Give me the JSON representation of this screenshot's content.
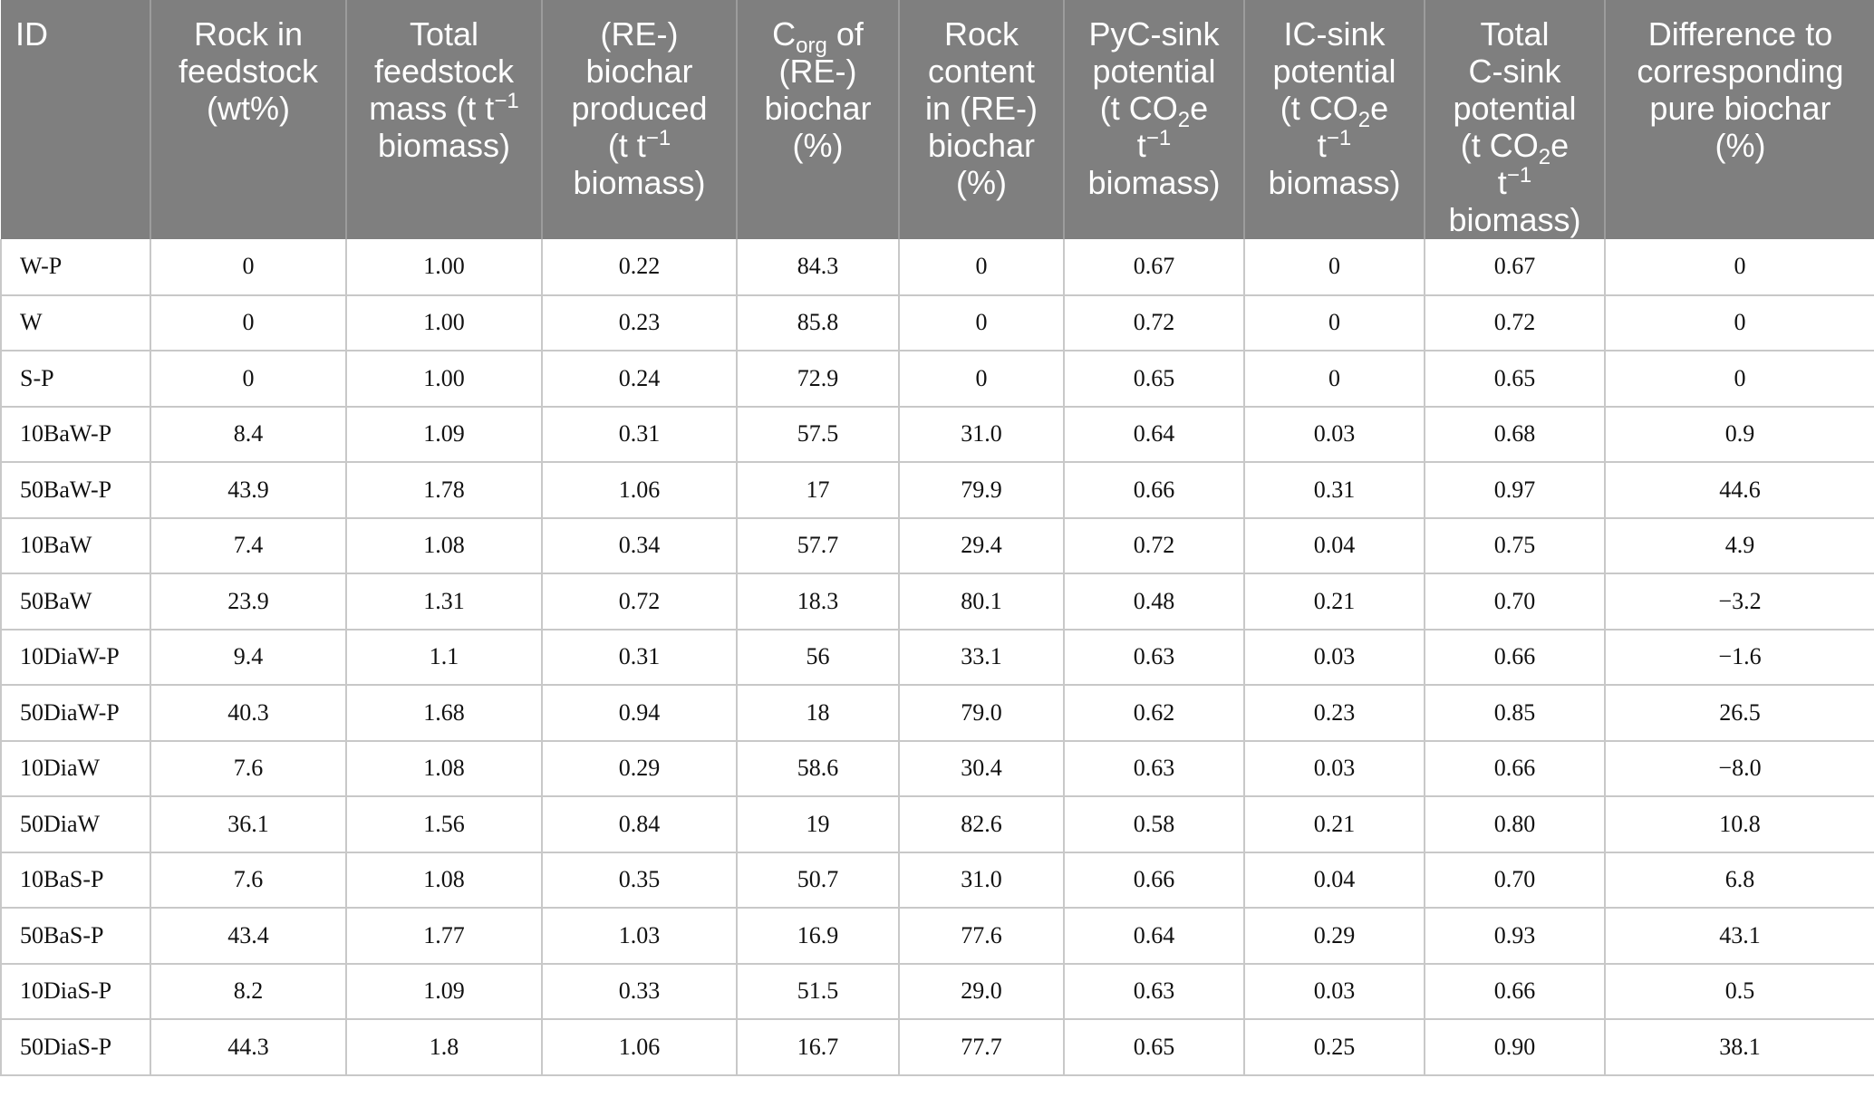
{
  "table": {
    "headers": [
      {
        "key": "id",
        "html": "ID"
      },
      {
        "key": "rock",
        "html": "Rock in<br>feedstock<br>(wt%)"
      },
      {
        "key": "mass",
        "html": "Total<br>feedstock<br>mass (t t<sup>&minus;1</sup><br>biomass)"
      },
      {
        "key": "produced",
        "html": "(RE-)<br>biochar<br>produced<br>(t t<sup>&minus;1</sup><br>biomass)"
      },
      {
        "key": "corg",
        "html": "C<sub>org</sub> of<br>(RE-)<br>biochar<br>(%)"
      },
      {
        "key": "rockcontent",
        "html": "Rock<br>content<br>in (RE-)<br>biochar<br>(%)"
      },
      {
        "key": "pyc",
        "html": "PyC-sink<br>potential<br>(t CO<sub>2</sub>e<br>t<sup>&minus;1</sup><br>biomass)"
      },
      {
        "key": "ic",
        "html": "IC-sink<br>potential<br>(t CO<sub>2</sub>e<br>t<sup>&minus;1</sup><br>biomass)"
      },
      {
        "key": "total",
        "html": "Total<br>C-sink<br>potential<br>(t CO<sub>2</sub>e<br>t<sup>&minus;1</sup><br>biomass)"
      },
      {
        "key": "diff",
        "html": "Difference to<br>corresponding<br>pure biochar<br>(%)"
      }
    ],
    "rows": [
      [
        "W-P",
        "0",
        "1.00",
        "0.22",
        "84.3",
        "0",
        "0.67",
        "0",
        "0.67",
        "0"
      ],
      [
        "W",
        "0",
        "1.00",
        "0.23",
        "85.8",
        "0",
        "0.72",
        "0",
        "0.72",
        "0"
      ],
      [
        "S-P",
        "0",
        "1.00",
        "0.24",
        "72.9",
        "0",
        "0.65",
        "0",
        "0.65",
        "0"
      ],
      [
        "10BaW-P",
        "8.4",
        "1.09",
        "0.31",
        "57.5",
        "31.0",
        "0.64",
        "0.03",
        "0.68",
        "0.9"
      ],
      [
        "50BaW-P",
        "43.9",
        "1.78",
        "1.06",
        "17",
        "79.9",
        "0.66",
        "0.31",
        "0.97",
        "44.6"
      ],
      [
        "10BaW",
        "7.4",
        "1.08",
        "0.34",
        "57.7",
        "29.4",
        "0.72",
        "0.04",
        "0.75",
        "4.9"
      ],
      [
        "50BaW",
        "23.9",
        "1.31",
        "0.72",
        "18.3",
        "80.1",
        "0.48",
        "0.21",
        "0.70",
        "−3.2"
      ],
      [
        "10DiaW-P",
        "9.4",
        "1.1",
        "0.31",
        "56",
        "33.1",
        "0.63",
        "0.03",
        "0.66",
        "−1.6"
      ],
      [
        "50DiaW-P",
        "40.3",
        "1.68",
        "0.94",
        "18",
        "79.0",
        "0.62",
        "0.23",
        "0.85",
        "26.5"
      ],
      [
        "10DiaW",
        "7.6",
        "1.08",
        "0.29",
        "58.6",
        "30.4",
        "0.63",
        "0.03",
        "0.66",
        "−8.0"
      ],
      [
        "50DiaW",
        "36.1",
        "1.56",
        "0.84",
        "19",
        "82.6",
        "0.58",
        "0.21",
        "0.80",
        "10.8"
      ],
      [
        "10BaS-P",
        "7.6",
        "1.08",
        "0.35",
        "50.7",
        "31.0",
        "0.66",
        "0.04",
        "0.70",
        "6.8"
      ],
      [
        "50BaS-P",
        "43.4",
        "1.77",
        "1.03",
        "16.9",
        "77.6",
        "0.64",
        "0.29",
        "0.93",
        "43.1"
      ],
      [
        "10DiaS-P",
        "8.2",
        "1.09",
        "0.33",
        "51.5",
        "29.0",
        "0.63",
        "0.03",
        "0.66",
        "0.5"
      ],
      [
        "50DiaS-P",
        "44.3",
        "1.8",
        "1.06",
        "16.7",
        "77.7",
        "0.65",
        "0.25",
        "0.90",
        "38.1"
      ]
    ]
  }
}
